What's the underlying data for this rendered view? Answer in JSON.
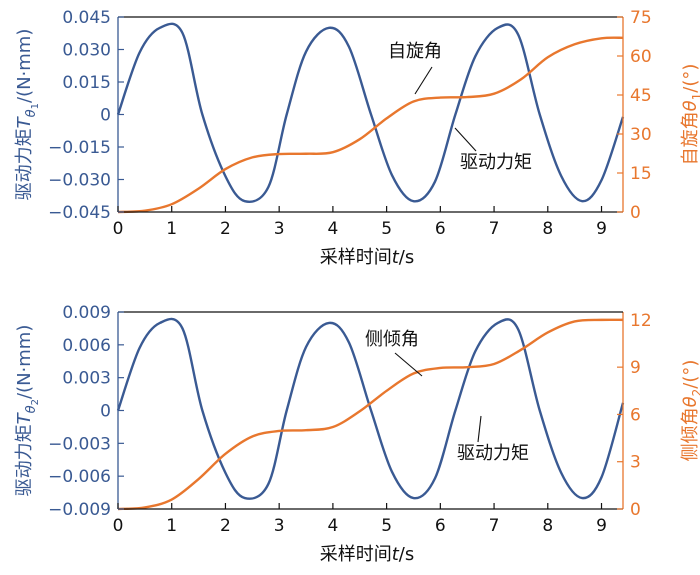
{
  "colors": {
    "left_axis": "#3a5a93",
    "right_axis": "#e8772e",
    "text": "#111111"
  },
  "chart_data": [
    {
      "type": "line",
      "title": "",
      "xlabel": "采样时间t/s",
      "ylabel_left": "驱动力矩T_θ1/(N·mm)",
      "ylabel_right": "自旋角θ1/(°)",
      "xlim": [
        0,
        9.4
      ],
      "ylim_left": [
        -0.045,
        0.045
      ],
      "ylim_right": [
        0,
        75
      ],
      "x_ticks": [
        "0",
        "1",
        "2",
        "3",
        "4",
        "5",
        "6",
        "7",
        "8",
        "9"
      ],
      "y_left_ticks": [
        "0.045",
        "0.030",
        "0.015",
        "0",
        "−0.015",
        "−0.030",
        "−0.045"
      ],
      "y_right_ticks": [
        "75",
        "60",
        "45",
        "30",
        "15",
        "0"
      ],
      "grid": false,
      "annotations": [
        "自旋角",
        "驱动力矩"
      ],
      "series": [
        {
          "name": "驱动力矩",
          "axis": "left",
          "color": "#3a5a93",
          "x": [
            0,
            0.4,
            0.78,
            1.2,
            1.57,
            2.0,
            2.36,
            2.8,
            3.14,
            3.5,
            3.93,
            4.3,
            4.71,
            5.1,
            5.5,
            5.9,
            6.28,
            6.65,
            7.07,
            7.45,
            7.85,
            8.25,
            8.64,
            9.0,
            9.4
          ],
          "y": [
            0,
            0.0285,
            0.04,
            0.0376,
            0,
            -0.0285,
            -0.04,
            -0.0334,
            0,
            0.029,
            0.04,
            0.0312,
            0,
            -0.028,
            -0.04,
            -0.031,
            0,
            0.0268,
            0.04,
            0.0368,
            0,
            -0.0284,
            -0.04,
            -0.0303,
            -0.0011
          ]
        },
        {
          "name": "自旋角",
          "axis": "right",
          "color": "#e8772e",
          "x": [
            0,
            0.5,
            1.0,
            1.5,
            2.0,
            2.5,
            3.0,
            3.5,
            4.0,
            4.5,
            5.0,
            5.5,
            6.0,
            6.5,
            7.0,
            7.5,
            8.0,
            8.5,
            9.0,
            9.4
          ],
          "y": [
            0,
            0.5,
            3.0,
            9.0,
            16.5,
            21.0,
            22.3,
            22.4,
            23.0,
            28.0,
            36.0,
            42.5,
            44.0,
            44.2,
            45.5,
            51.0,
            59.5,
            64.5,
            66.8,
            67.0
          ]
        }
      ]
    },
    {
      "type": "line",
      "title": "",
      "xlabel": "采样时间t/s",
      "ylabel_left": "驱动力矩T_θ2/(N·mm)",
      "ylabel_right": "侧倾角θ2/(°)",
      "xlim": [
        0,
        9.4
      ],
      "ylim_left": [
        -0.009,
        0.009
      ],
      "ylim_right": [
        0,
        12.5
      ],
      "x_ticks": [
        "0",
        "1",
        "2",
        "3",
        "4",
        "5",
        "6",
        "7",
        "8",
        "9"
      ],
      "y_left_ticks": [
        "0.009",
        "0.006",
        "0.003",
        "0",
        "−0.003",
        "−0.006",
        "−0.009"
      ],
      "y_right_ticks": [
        "12",
        "9",
        "6",
        "3",
        "0"
      ],
      "grid": false,
      "annotations": [
        "侧倾角",
        "驱动力矩"
      ],
      "series": [
        {
          "name": "驱动力矩",
          "axis": "left",
          "color": "#3a5a93",
          "x": [
            0,
            0.4,
            0.78,
            1.2,
            1.57,
            2.0,
            2.36,
            2.8,
            3.14,
            3.5,
            3.93,
            4.3,
            4.71,
            5.1,
            5.5,
            5.9,
            6.28,
            6.65,
            7.07,
            7.45,
            7.85,
            8.25,
            8.64,
            9.0,
            9.4
          ],
          "y": [
            0,
            0.0057,
            0.008,
            0.0075,
            0,
            -0.0057,
            -0.008,
            -0.0067,
            0,
            0.0058,
            0.008,
            0.0062,
            0,
            -0.0056,
            -0.008,
            -0.0062,
            0,
            0.0054,
            0.008,
            0.0074,
            0,
            -0.0057,
            -0.008,
            -0.0061,
            0.0007
          ]
        },
        {
          "name": "侧倾角",
          "axis": "right",
          "color": "#e8772e",
          "x": [
            0,
            0.5,
            1.0,
            1.5,
            2.0,
            2.5,
            3.0,
            3.5,
            4.0,
            4.5,
            5.0,
            5.5,
            6.0,
            6.5,
            7.0,
            7.5,
            8.0,
            8.5,
            9.0,
            9.4
          ],
          "y": [
            0,
            0.1,
            0.6,
            1.9,
            3.5,
            4.6,
            4.95,
            5.0,
            5.2,
            6.2,
            7.5,
            8.6,
            8.95,
            9.0,
            9.2,
            10.1,
            11.2,
            11.9,
            12.0,
            12.0
          ]
        }
      ]
    }
  ]
}
